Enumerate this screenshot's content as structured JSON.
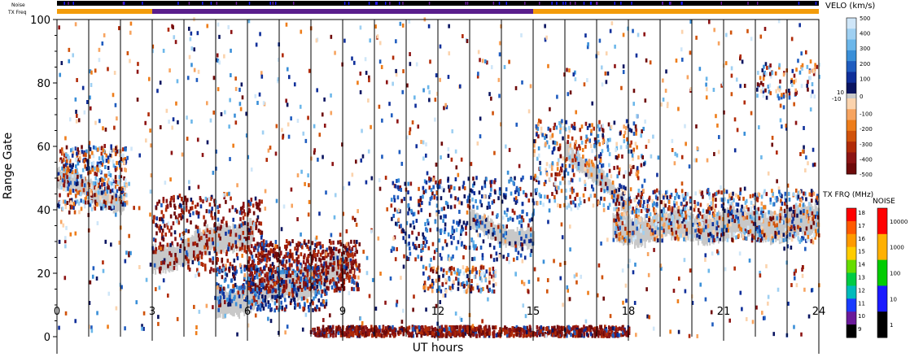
{
  "chart_data": {
    "type": "heatmap",
    "title": "",
    "xlabel": "UT hours",
    "ylabel": "Range Gate",
    "xlim": [
      0,
      24
    ],
    "ylim": [
      0,
      100
    ],
    "x_ticks": [
      0,
      3,
      6,
      9,
      12,
      15,
      18,
      21,
      24
    ],
    "y_ticks": [
      0,
      20,
      40,
      60,
      80,
      100
    ],
    "scan_boundaries_ut": [
      1.0,
      2.0,
      3.0,
      4.0,
      5.0,
      6.0,
      7.0,
      8.0,
      9.0,
      10.0,
      11.0,
      12.0,
      13.0,
      14.0,
      15.0,
      16.0,
      17.0,
      18.0,
      19.0,
      20.0,
      21.0,
      22.0,
      23.0
    ],
    "top_bars": {
      "noise_label": "Noise",
      "txfreq_label": "TX Freq",
      "tx_segments": [
        {
          "start": 0,
          "end": 3,
          "color": "#f39c0a"
        },
        {
          "start": 3,
          "end": 15,
          "color": "#5a1e8c"
        },
        {
          "start": 15,
          "end": 24,
          "color": "#f39c0a"
        }
      ]
    },
    "velocity_scale": {
      "title": "VELO (km/s)",
      "ticks": [
        "500",
        "400",
        "300",
        "200",
        "100",
        "0",
        "-100",
        "-200",
        "-300",
        "-400",
        "-500"
      ],
      "ground_scatter_labels": [
        "10",
        "-10"
      ],
      "colors_positive": [
        "#cfe6f8",
        "#9fd0f2",
        "#6cb7ea",
        "#3a8fd8",
        "#1f5cbf",
        "#0f2f9a",
        "#0a1460"
      ],
      "colors_negative": [
        "#6e0a0a",
        "#8c1414",
        "#b02a08",
        "#d0520a",
        "#ee7d1a",
        "#f7a460",
        "#fbd3ad"
      ]
    },
    "txfreq_scale": {
      "title": "TX FRQ (MHz)",
      "ticks": [
        "18",
        "17",
        "16",
        "15",
        "14",
        "13",
        "12",
        "11",
        "10",
        "9"
      ],
      "colors": [
        "#ff0000",
        "#ff5a00",
        "#ff9a00",
        "#ffcc00",
        "#66dd00",
        "#00cc44",
        "#00bbbb",
        "#1a3cff",
        "#6a1a9a",
        "#000000"
      ]
    },
    "noise_scale": {
      "title": "NOISE",
      "ticks": [
        "10000",
        "1000",
        "100",
        "10",
        "1"
      ],
      "colors": [
        "#ff0000",
        "#ffb000",
        "#00cc00",
        "#1a1aff",
        "#000000"
      ]
    },
    "ground_scatter_bands": [
      {
        "t0": 0.0,
        "g0": 50,
        "t1": 2.1,
        "g1": 42,
        "width": 7
      },
      {
        "t0": 3.0,
        "g0": 24,
        "t1": 6.2,
        "g1": 34,
        "width": 9
      },
      {
        "t0": 5.0,
        "g0": 10,
        "t1": 9.2,
        "g1": 22,
        "width": 10
      },
      {
        "t0": 13.0,
        "g0": 36,
        "t1": 15.0,
        "g1": 30,
        "width": 7
      },
      {
        "t0": 16.0,
        "g0": 60,
        "t1": 18.0,
        "g1": 40,
        "width": 6
      },
      {
        "t0": 17.5,
        "g0": 34,
        "t1": 24.0,
        "g1": 36,
        "width": 10
      }
    ],
    "scatter_clusters": [
      {
        "t0": 0.0,
        "t1": 2.2,
        "g0": 40,
        "g1": 60,
        "n": 420,
        "mix": "mixed"
      },
      {
        "t0": 3.0,
        "t1": 6.5,
        "g0": 20,
        "g1": 44,
        "n": 360,
        "mix": "negative"
      },
      {
        "t0": 6.0,
        "t1": 9.5,
        "g0": 14,
        "g1": 30,
        "n": 560,
        "mix": "negative"
      },
      {
        "t0": 5.0,
        "t1": 8.5,
        "g0": 8,
        "g1": 22,
        "n": 300,
        "mix": "positive"
      },
      {
        "t0": 10.5,
        "t1": 15.0,
        "g0": 24,
        "g1": 50,
        "n": 380,
        "mix": "positive"
      },
      {
        "t0": 11.5,
        "t1": 13.8,
        "g0": 14,
        "g1": 22,
        "n": 140,
        "mix": "mixed"
      },
      {
        "t0": 15.0,
        "t1": 18.5,
        "g0": 40,
        "g1": 68,
        "n": 380,
        "mix": "mixed"
      },
      {
        "t0": 17.5,
        "t1": 24.0,
        "g0": 30,
        "g1": 46,
        "n": 700,
        "mix": "mixed"
      },
      {
        "t0": 22.0,
        "t1": 24.0,
        "g0": 75,
        "g1": 86,
        "n": 80,
        "mix": "mixed"
      },
      {
        "t0": 8.0,
        "t1": 18.0,
        "g0": 0,
        "g1": 3,
        "n": 900,
        "mix": "negative"
      },
      {
        "t0": 0.0,
        "t1": 24.0,
        "g0": 0,
        "g1": 100,
        "n": 1100,
        "mix": "mixed"
      }
    ]
  }
}
